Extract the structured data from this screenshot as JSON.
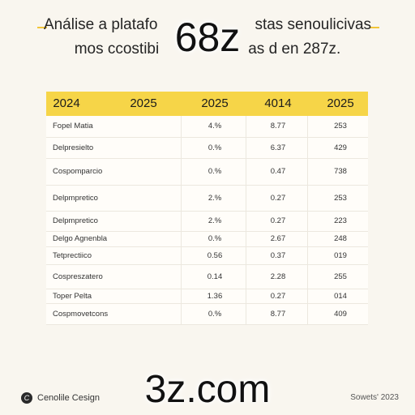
{
  "header": {
    "title_line1": "Análise a platafo",
    "title_line1_end": "stas senoulicivas",
    "title_line2": "mos ccostibi",
    "title_line2_end": "as d en 287z.",
    "overlay": "68z"
  },
  "table": {
    "columns": [
      "2024",
      "2025",
      "2025",
      "4014",
      "2025"
    ],
    "rows": [
      {
        "label": "Fopel Matia",
        "c1": "4.%",
        "c2": "8.77",
        "c3": "253"
      },
      {
        "label": "Delpresielto",
        "c1": "0.%",
        "c2": "6.37",
        "c3": "429"
      },
      {
        "label": "Cospomparcio",
        "c1": "0.%",
        "c2": "0.47",
        "c3": "738"
      },
      {
        "label": "Delpmpretico",
        "c1": "2.%",
        "c2": "0.27",
        "c3": "253"
      },
      {
        "label": "Delpmpretico",
        "c1": "2.%",
        "c2": "0.27",
        "c3": "223"
      },
      {
        "label": "Delgo Agnenbla",
        "c1": "0.%",
        "c2": "2.67",
        "c3": "248"
      },
      {
        "label": "Tetprectiico",
        "c1": "0.56",
        "c2": "0.37",
        "c3": "019"
      },
      {
        "label": "Cospreszatero",
        "c1": "0.14",
        "c2": "2.28",
        "c3": "255"
      },
      {
        "label": "Toper Pelta",
        "c1": "1.36",
        "c2": "0.27",
        "c3": "014"
      },
      {
        "label": "Cospmovetcons",
        "c1": "0.%",
        "c2": "8.77",
        "c3": "409"
      }
    ]
  },
  "footer": {
    "brand": "Cenolile Cesign",
    "right_text": "Sowets' 2023",
    "overlay": "3z.com"
  },
  "colors": {
    "accent": "#f6d548",
    "background": "#f9f6ef"
  }
}
